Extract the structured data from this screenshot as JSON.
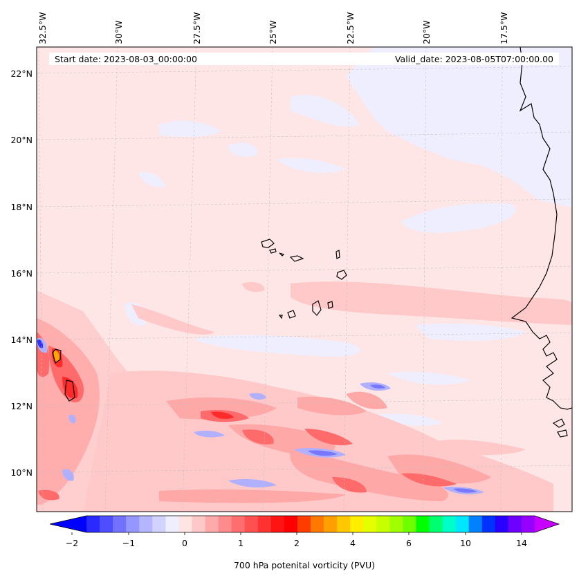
{
  "header": {
    "start_date": "Start date: 2023-08-03_00:00:00",
    "valid_date": "Valid_date: 2023-08-05T07:00:00.00"
  },
  "map": {
    "lon_labels": [
      "32.5°W",
      "30°W",
      "27.5°W",
      "25°W",
      "22.5°W",
      "20°W",
      "17.5°W"
    ],
    "lat_labels": [
      "22°N",
      "20°N",
      "18°N",
      "16°N",
      "14°N",
      "12°N",
      "10°N"
    ],
    "field_colors": {
      "background": "#ffe6e6",
      "light_blue": "#eeeeff",
      "pink": "#ffc8c8",
      "light_red": "#ffa8a8",
      "red": "#ff6a6a",
      "strong_red": "#ff2a2a",
      "blue": "#b0b0ff",
      "mid_blue": "#7777ff",
      "dark_blue": "#3030ff",
      "orange": "#ffa500"
    }
  },
  "colorbar": {
    "label": "700 hPa potenital vorticity (PVU)",
    "tick_labels": [
      "−2",
      "−1",
      "0",
      "1",
      "2",
      "4",
      "6",
      "10",
      "14"
    ],
    "colors": [
      "#0000ff",
      "#2a2aff",
      "#4e4eff",
      "#7272ff",
      "#9696ff",
      "#b4b4ff",
      "#d2d2ff",
      "#eeeeff",
      "#ffe4e4",
      "#ffc8c8",
      "#ffaaaa",
      "#ff8c8c",
      "#ff6e6e",
      "#ff5050",
      "#ff3232",
      "#ff1414",
      "#ff0000",
      "#ff3c00",
      "#ff7800",
      "#ffa000",
      "#ffc800",
      "#ffee00",
      "#e6ff00",
      "#c8ff00",
      "#a0ff00",
      "#6eff00",
      "#00ff00",
      "#00ff6e",
      "#00ffc8",
      "#00e6ff",
      "#0082ff",
      "#0032ff",
      "#2800ff",
      "#6e00ff",
      "#9600ff",
      "#c800ff"
    ]
  }
}
